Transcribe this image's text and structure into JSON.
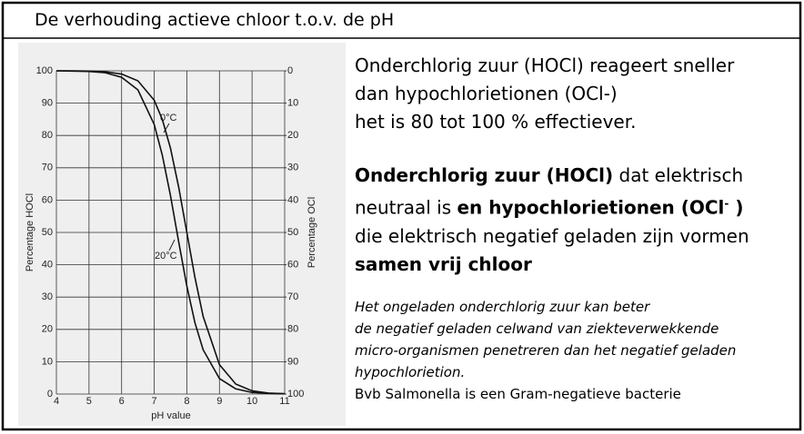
{
  "title": "De verhouding actieve chloor  t.o.v. de pH",
  "chart_data": {
    "type": "line",
    "xlabel": "pH value",
    "ylabel": "Percentage HOCl",
    "y2label": "Percentage OCl",
    "x": [
      4,
      4.5,
      5,
      5.5,
      6,
      6.5,
      7,
      7.25,
      7.5,
      7.75,
      8,
      8.25,
      8.5,
      9,
      9.5,
      10,
      10.5,
      11
    ],
    "series": [
      {
        "name": "0°C",
        "color": "#111111",
        "values": [
          100.0,
          100.0,
          99.9,
          99.7,
          99.0,
          96.9,
          90.9,
          84.9,
          76.0,
          64.0,
          50.0,
          36.0,
          24.0,
          9.1,
          3.1,
          1.0,
          0.3,
          0.1
        ]
      },
      {
        "name": "20°C",
        "color": "#111111",
        "values": [
          100.0,
          99.9,
          99.8,
          99.4,
          98.0,
          94.1,
          83.4,
          73.8,
          61.3,
          47.1,
          33.4,
          22.0,
          13.7,
          4.8,
          1.6,
          0.5,
          0.2,
          0.1
        ]
      }
    ],
    "xlim": [
      4,
      11
    ],
    "xticks": [
      4,
      5,
      6,
      7,
      8,
      9,
      10,
      11
    ],
    "ylim": [
      0,
      100
    ],
    "yticks": [
      0,
      10,
      20,
      30,
      40,
      50,
      60,
      70,
      80,
      90,
      100
    ],
    "y2lim": [
      100,
      0
    ],
    "y2ticks": [
      0,
      10,
      20,
      30,
      40,
      50,
      60,
      70,
      80,
      90,
      100
    ],
    "grid": true
  },
  "text": {
    "block1": [
      [
        {
          "text": "Onderchlorig zuur (HOCl) reageert sneller",
          "style": "n"
        }
      ],
      [
        {
          "text": "dan hypochlorietionen (OCl-)",
          "style": "n"
        }
      ],
      [
        {
          "text": "het is 80 tot 100 % effectiever.",
          "style": "n"
        }
      ]
    ],
    "block2": [
      [
        {
          "text": "Onderchlorig zuur (HOCl)",
          "style": "b"
        },
        {
          "text": " dat elektrisch",
          "style": "n"
        }
      ],
      [
        {
          "text": "neutraal is ",
          "style": "n"
        },
        {
          "text": "en hypochlorietionen (OCl",
          "style": "b"
        },
        {
          "text": "-",
          "style": "sup"
        },
        {
          "text": " )",
          "style": "b"
        }
      ],
      [
        {
          "text": "die elektrisch negatief geladen zijn vormen",
          "style": "n"
        }
      ],
      [
        {
          "text": "samen vrij chloor",
          "style": "b"
        }
      ]
    ],
    "block3": [
      [
        {
          "text": "Het ongeladen onderchlorig zuur kan beter",
          "style": "i"
        }
      ],
      [
        {
          "text": "de negatief geladen celwand van ziekteverwekkende",
          "style": "i"
        }
      ],
      [
        {
          "text": "micro-organismen penetreren dan het negatief geladen",
          "style": "i"
        }
      ],
      [
        {
          "text": "hypochlorietion.",
          "style": "i"
        }
      ],
      [
        {
          "text": "Bvb Salmonella  is een Gram-negatieve bacterie",
          "style": "n"
        }
      ]
    ]
  }
}
